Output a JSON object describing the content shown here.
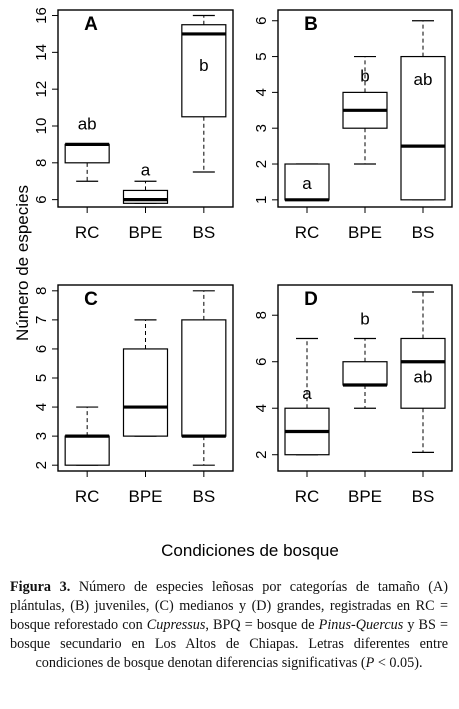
{
  "figure": {
    "ylabel": "Número de especies",
    "xlabel": "Condiciones de bosque"
  },
  "caption": {
    "figure_label": "Figura 3.",
    "part1": " Número de especies leñosas por categorías de tamaño (A) plántulas, (B) juveniles, (C) medianos y (D) grandes, registradas en RC = bosque reforestado con ",
    "genus1": "Cupressus",
    "part2": ", BPQ = bosque de ",
    "genus2": "Pinus-Quercus",
    "part3": " y BS = bosque secundario en Los Altos de Chiapas. Letras diferentes entre condiciones de bosque denotan diferencias significativas (",
    "p_symbol": "P",
    "part4": " < 0.05)."
  },
  "chart_data": [
    {
      "type": "boxplot",
      "panel_label": "A",
      "categories": [
        "RC",
        "BPE",
        "BS"
      ],
      "yticks": [
        6,
        8,
        10,
        12,
        14,
        16
      ],
      "ylim": [
        5.6,
        16.3
      ],
      "boxes": [
        {
          "min": 7,
          "q1": 8,
          "median": 9,
          "q3": 9,
          "max": 9,
          "letter": "ab"
        },
        {
          "min": 5.8,
          "q1": 5.8,
          "median": 6,
          "q3": 6.5,
          "max": 7,
          "letter": "a"
        },
        {
          "min": 7.5,
          "q1": 10.5,
          "median": 15,
          "q3": 15.5,
          "max": 16,
          "letter": "b"
        }
      ]
    },
    {
      "type": "boxplot",
      "panel_label": "B",
      "categories": [
        "RC",
        "BPE",
        "BS"
      ],
      "yticks": [
        1,
        2,
        3,
        4,
        5,
        6
      ],
      "ylim": [
        0.8,
        6.3
      ],
      "boxes": [
        {
          "min": 1,
          "q1": 1,
          "median": 1,
          "q3": 2,
          "max": 2,
          "letter": "a"
        },
        {
          "min": 2,
          "q1": 3,
          "median": 3.5,
          "q3": 4,
          "max": 5,
          "letter": "b"
        },
        {
          "min": 1,
          "q1": 1,
          "median": 2.5,
          "q3": 5,
          "max": 6,
          "letter": "ab"
        }
      ]
    },
    {
      "type": "boxplot",
      "panel_label": "C",
      "categories": [
        "RC",
        "BPE",
        "BS"
      ],
      "yticks": [
        2,
        3,
        4,
        5,
        6,
        7,
        8
      ],
      "ylim": [
        1.8,
        8.2
      ],
      "boxes": [
        {
          "min": 2,
          "q1": 2,
          "median": 3,
          "q3": 3,
          "max": 4,
          "letter": ""
        },
        {
          "min": 3,
          "q1": 3,
          "median": 4,
          "q3": 6,
          "max": 7,
          "letter": ""
        },
        {
          "min": 2,
          "q1": 3,
          "median": 3,
          "q3": 7,
          "max": 8,
          "letter": ""
        }
      ]
    },
    {
      "type": "boxplot",
      "panel_label": "D",
      "categories": [
        "RC",
        "BPE",
        "BS"
      ],
      "yticks": [
        2,
        4,
        6,
        8
      ],
      "ylim": [
        1.3,
        9.3
      ],
      "boxes": [
        {
          "min": 2,
          "q1": 2,
          "median": 3,
          "q3": 4,
          "max": 7,
          "letter": "a"
        },
        {
          "min": 4,
          "q1": 5,
          "median": 5,
          "q3": 6,
          "max": 7,
          "letter": "b"
        },
        {
          "min": 2.1,
          "q1": 4,
          "median": 6,
          "q3": 7,
          "max": 9,
          "letter": "ab"
        }
      ]
    }
  ]
}
